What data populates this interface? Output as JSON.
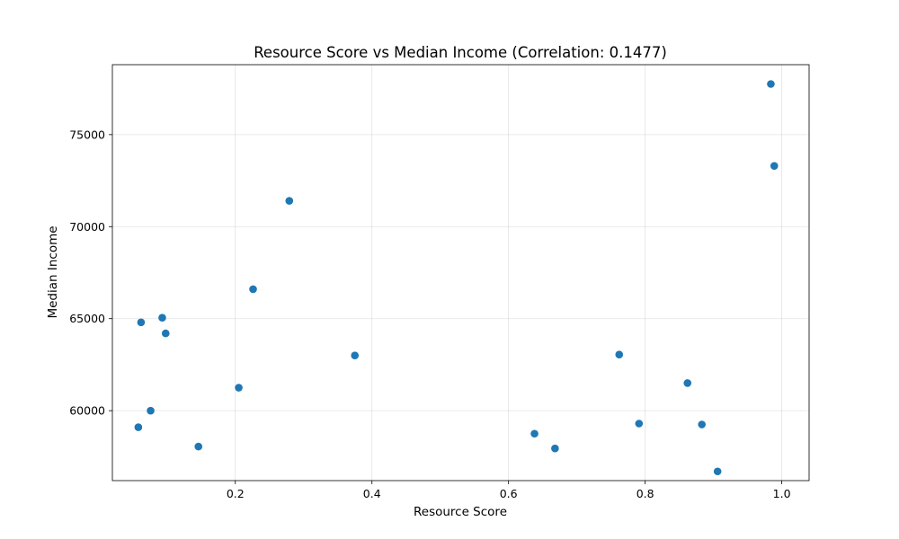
{
  "chart_data": {
    "type": "scatter",
    "title": "Resource Score vs Median Income (Correlation: 0.1477)",
    "xlabel": "Resource Score",
    "ylabel": "Median Income",
    "xlim": [
      0.02,
      1.04
    ],
    "ylim": [
      56200,
      78800
    ],
    "xticks": [
      0.2,
      0.4,
      0.6,
      0.8,
      1.0
    ],
    "xtick_labels": [
      "0.2",
      "0.4",
      "0.6",
      "0.8",
      "1.0"
    ],
    "yticks": [
      60000,
      65000,
      70000,
      75000
    ],
    "ytick_labels": [
      "60000",
      "65000",
      "70000",
      "75000"
    ],
    "grid": true,
    "point_color": "#1f77b4",
    "points": [
      {
        "x": 0.058,
        "y": 59100
      },
      {
        "x": 0.062,
        "y": 64800
      },
      {
        "x": 0.076,
        "y": 60000
      },
      {
        "x": 0.093,
        "y": 65050
      },
      {
        "x": 0.098,
        "y": 64200
      },
      {
        "x": 0.146,
        "y": 58050
      },
      {
        "x": 0.205,
        "y": 61250
      },
      {
        "x": 0.226,
        "y": 66600
      },
      {
        "x": 0.279,
        "y": 71400
      },
      {
        "x": 0.375,
        "y": 63000
      },
      {
        "x": 0.638,
        "y": 58750
      },
      {
        "x": 0.668,
        "y": 57950
      },
      {
        "x": 0.762,
        "y": 63050
      },
      {
        "x": 0.791,
        "y": 59300
      },
      {
        "x": 0.862,
        "y": 61500
      },
      {
        "x": 0.883,
        "y": 59250
      },
      {
        "x": 0.906,
        "y": 56700
      },
      {
        "x": 0.984,
        "y": 77750
      },
      {
        "x": 0.989,
        "y": 73300
      }
    ]
  }
}
